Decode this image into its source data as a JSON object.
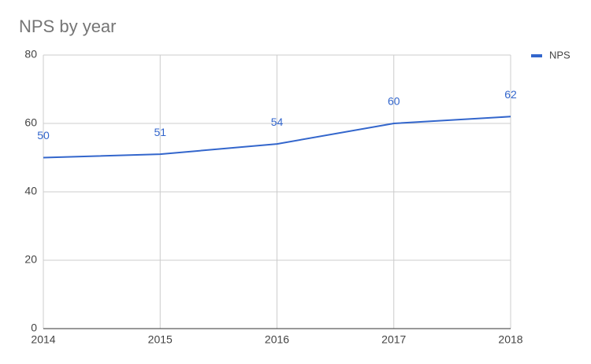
{
  "chart_data": {
    "type": "line",
    "title": "NPS by year",
    "x": [
      2014,
      2015,
      2016,
      2017,
      2018
    ],
    "series": [
      {
        "name": "NPS",
        "color": "#3366cc",
        "values": [
          50,
          51,
          54,
          60,
          62
        ]
      }
    ],
    "xlim": [
      2014,
      2018
    ],
    "xticks": [
      2014,
      2015,
      2016,
      2017,
      2018
    ],
    "ylim": [
      0,
      80
    ],
    "yticks": [
      0,
      20,
      40,
      60,
      80
    ],
    "grid": true,
    "legend": "right",
    "data_labels": true
  }
}
